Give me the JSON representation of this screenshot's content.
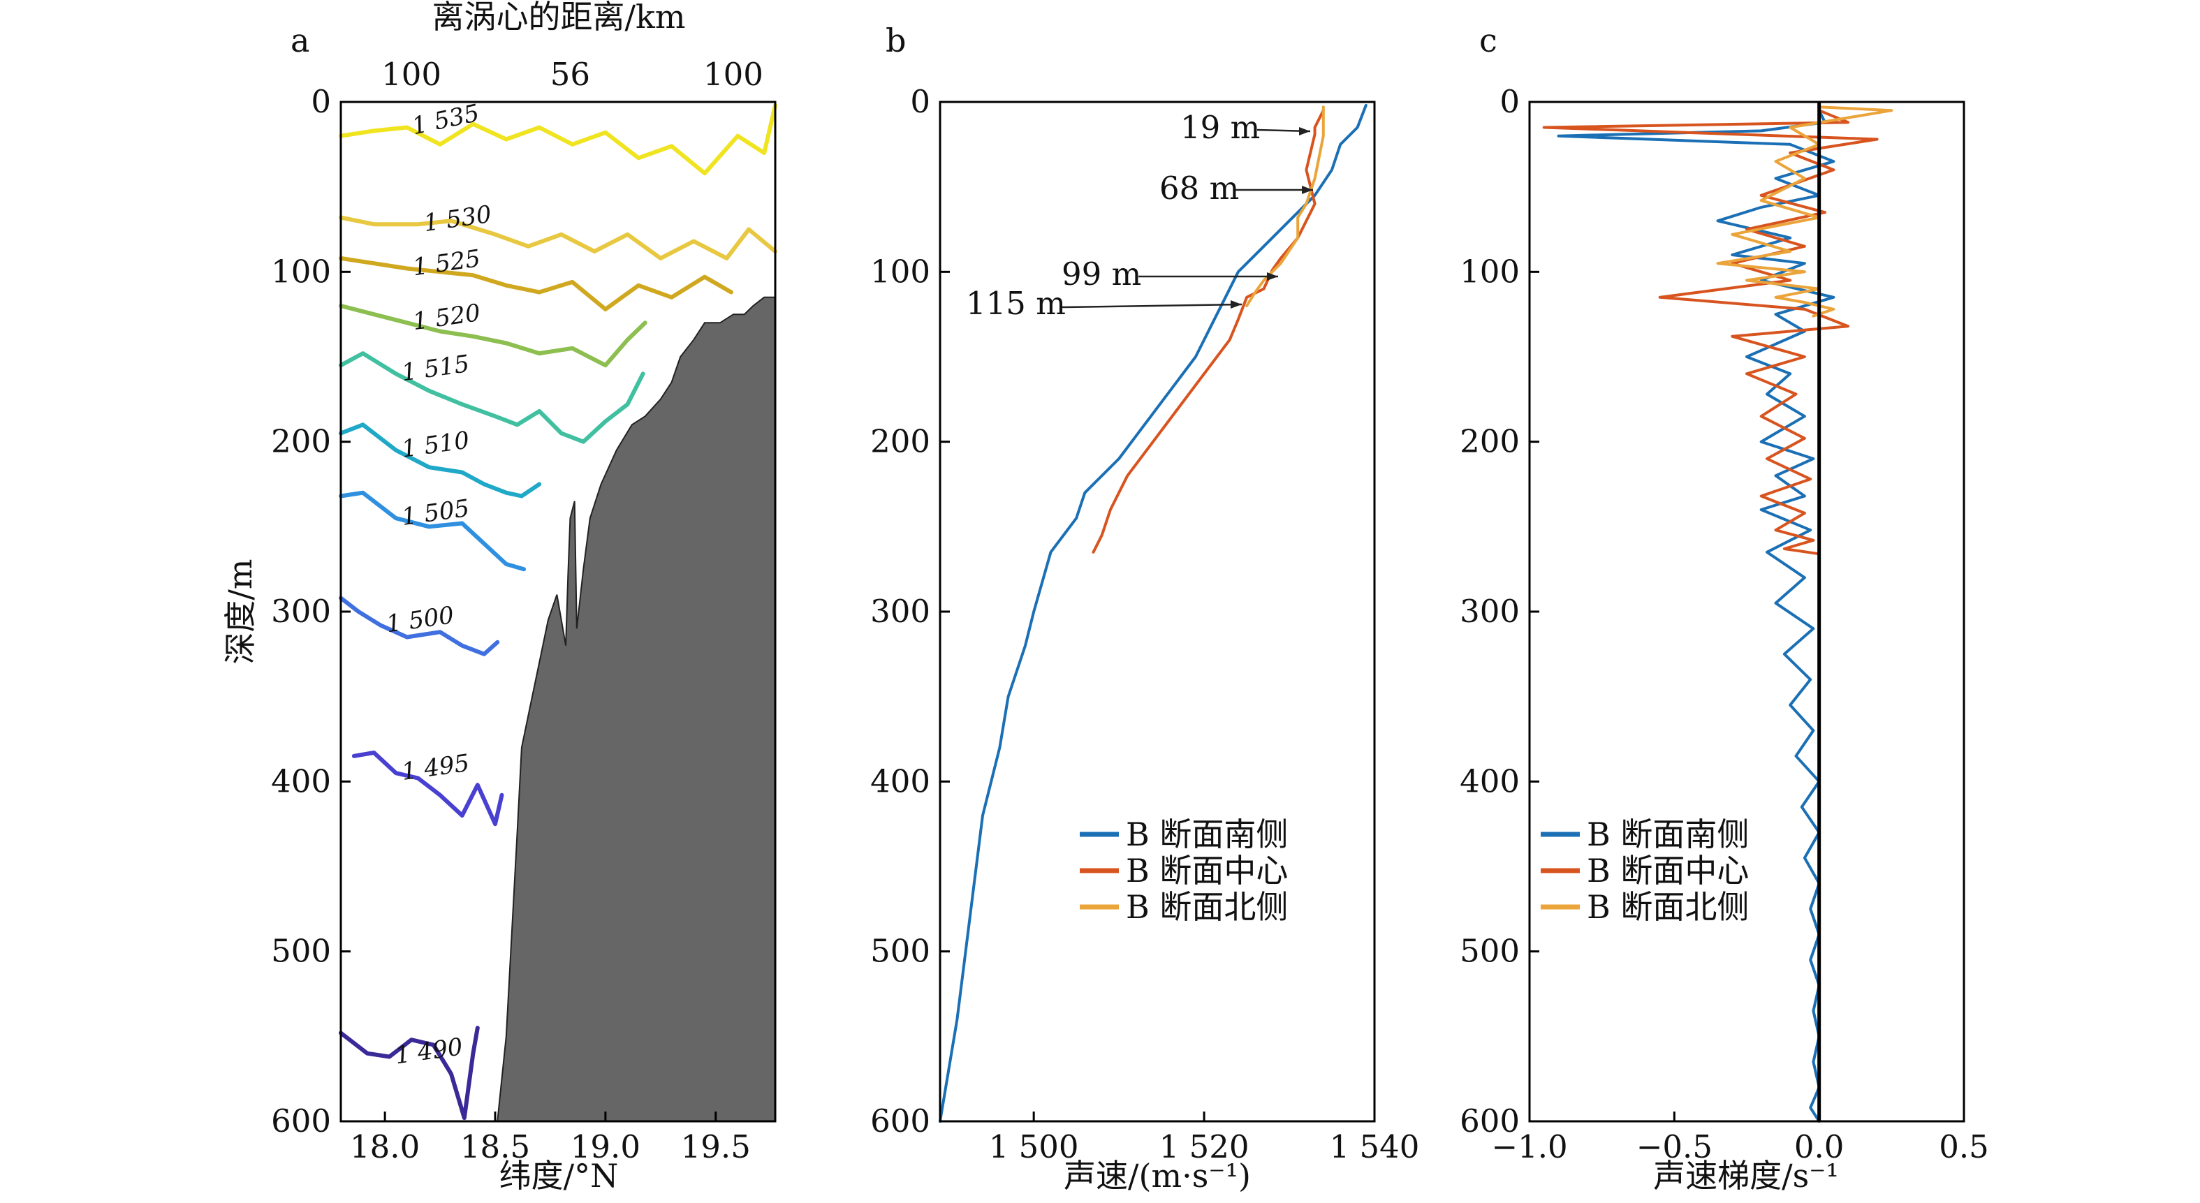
{
  "chart_data": [
    {
      "type": "line",
      "panel_letter": "a",
      "xlabel": "纬度/°N",
      "ylabel": "深度/m",
      "top_axis_label": "离涡心的距离/km",
      "top_ticks": [
        {
          "x": 18.12,
          "label": "100"
        },
        {
          "x": 18.84,
          "label": "56"
        },
        {
          "x": 19.58,
          "label": "100"
        }
      ],
      "xlim": [
        17.8,
        19.77
      ],
      "ylim": [
        600,
        0
      ],
      "xticks": [
        18.0,
        18.5,
        19.0,
        19.5
      ],
      "xtick_labels": [
        "18.0",
        "18.5",
        "19.0",
        "19.5"
      ],
      "yticks": [
        0,
        100,
        200,
        300,
        400,
        500,
        600
      ],
      "ytick_labels": [
        "0",
        "100",
        "200",
        "300",
        "400",
        "500",
        "600"
      ],
      "contour_levels": [
        {
          "level": 1535,
          "label": "1 535",
          "color": "#f0e420",
          "x": [
            17.8,
            17.95,
            18.1,
            18.25,
            18.4,
            18.55,
            18.7,
            18.85,
            19.0,
            19.15,
            19.3,
            19.45,
            19.6,
            19.72,
            19.77
          ],
          "y": [
            20,
            17,
            15,
            25,
            13,
            22,
            15,
            25,
            18,
            33,
            26,
            42,
            20,
            30,
            2
          ]
        },
        {
          "level": 1530,
          "label": "1 530",
          "color": "#e8c840",
          "x": [
            17.8,
            17.95,
            18.15,
            18.3,
            18.5,
            18.65,
            18.8,
            18.95,
            19.1,
            19.25,
            19.4,
            19.55,
            19.65,
            19.77
          ],
          "y": [
            68,
            72,
            72,
            70,
            78,
            85,
            78,
            88,
            78,
            92,
            82,
            92,
            75,
            88
          ]
        },
        {
          "level": 1525,
          "label": "1 525",
          "color": "#d0a820",
          "x": [
            17.8,
            17.95,
            18.1,
            18.25,
            18.4,
            18.55,
            18.7,
            18.85,
            19.0,
            19.15,
            19.3,
            19.45,
            19.57
          ],
          "y": [
            92,
            95,
            98,
            100,
            102,
            108,
            112,
            106,
            122,
            108,
            115,
            103,
            112
          ]
        },
        {
          "level": 1520,
          "label": "1 520",
          "color": "#8cbe50",
          "x": [
            17.8,
            17.95,
            18.1,
            18.25,
            18.4,
            18.55,
            18.7,
            18.85,
            19.0,
            19.1,
            19.18
          ],
          "y": [
            120,
            125,
            130,
            135,
            138,
            142,
            148,
            145,
            155,
            140,
            130
          ]
        },
        {
          "level": 1515,
          "label": "1 515",
          "color": "#40c0a0",
          "x": [
            17.8,
            17.9,
            18.05,
            18.2,
            18.35,
            18.5,
            18.6,
            18.7,
            18.8,
            18.9,
            19.0,
            19.1,
            19.17
          ],
          "y": [
            155,
            148,
            160,
            170,
            178,
            185,
            190,
            182,
            195,
            200,
            188,
            178,
            160
          ]
        },
        {
          "level": 1510,
          "label": "1 510",
          "color": "#20a8c8",
          "x": [
            17.8,
            17.9,
            18.05,
            18.2,
            18.35,
            18.45,
            18.55,
            18.62,
            18.7
          ],
          "y": [
            195,
            190,
            205,
            215,
            218,
            225,
            230,
            232,
            225
          ]
        },
        {
          "level": 1505,
          "label": "1 505",
          "color": "#3090e0",
          "x": [
            17.8,
            17.9,
            18.05,
            18.2,
            18.35,
            18.45,
            18.55,
            18.63
          ],
          "y": [
            232,
            230,
            245,
            250,
            248,
            260,
            272,
            275
          ]
        },
        {
          "level": 1500,
          "label": "1 500",
          "color": "#4070e0",
          "x": [
            17.8,
            17.88,
            17.98,
            18.1,
            18.25,
            18.35,
            18.45,
            18.51
          ],
          "y": [
            292,
            300,
            308,
            315,
            312,
            320,
            325,
            318
          ]
        },
        {
          "level": 1495,
          "label": "1 495",
          "color": "#4840d0",
          "x": [
            17.86,
            17.95,
            18.05,
            18.15,
            18.25,
            18.35,
            18.42,
            18.5,
            18.53
          ],
          "y": [
            385,
            383,
            395,
            398,
            408,
            420,
            402,
            425,
            408
          ]
        },
        {
          "level": 1490,
          "label": "1 490",
          "color": "#3a2a98",
          "x": [
            17.8,
            17.92,
            18.02,
            18.12,
            18.22,
            18.3,
            18.36,
            18.4,
            18.42
          ],
          "y": [
            548,
            560,
            562,
            552,
            555,
            572,
            598,
            560,
            545
          ]
        }
      ],
      "seafloor": {
        "color": "#666666",
        "x": [
          18.51,
          18.55,
          18.6,
          18.62,
          18.66,
          18.7,
          18.74,
          18.78,
          18.82,
          18.83,
          18.84,
          18.86,
          18.87,
          18.9,
          18.93,
          18.98,
          19.05,
          19.12,
          19.18,
          19.25,
          19.3,
          19.34,
          19.4,
          19.45,
          19.52,
          19.58,
          19.63,
          19.67,
          19.72,
          19.77
        ],
        "y": [
          600,
          550,
          430,
          380,
          355,
          330,
          305,
          290,
          320,
          280,
          245,
          235,
          310,
          275,
          245,
          225,
          205,
          190,
          185,
          175,
          165,
          150,
          140,
          130,
          130,
          125,
          125,
          120,
          115,
          115
        ]
      }
    },
    {
      "type": "line",
      "panel_letter": "b",
      "xlabel": "声速/(m·s⁻¹)",
      "ylim": [
        600,
        0
      ],
      "xlim": [
        1489,
        1540
      ],
      "xticks": [
        1500,
        1520,
        1540
      ],
      "xtick_labels": [
        "1 500",
        "1 520",
        "1 540"
      ],
      "yticks": [
        0,
        100,
        200,
        300,
        400,
        500,
        600
      ],
      "ytick_labels": [
        "0",
        "100",
        "200",
        "300",
        "400",
        "500",
        "600"
      ],
      "series": [
        {
          "name": "B 断面南侧",
          "color": "#1a6fb5",
          "x": [
            1539,
            1538,
            1536,
            1535,
            1533,
            1530,
            1527,
            1524,
            1523,
            1521,
            1519,
            1516,
            1513,
            1510,
            1506,
            1505,
            1502,
            1500,
            1499,
            1497,
            1496,
            1494,
            1493,
            1492,
            1491,
            1490,
            1489
          ],
          "y": [
            2,
            15,
            25,
            40,
            55,
            70,
            85,
            100,
            110,
            130,
            150,
            170,
            190,
            210,
            230,
            245,
            265,
            300,
            320,
            350,
            380,
            420,
            460,
            500,
            540,
            570,
            600
          ]
        },
        {
          "name": "B 断面中心",
          "color": "#d8541f",
          "x": [
            1534,
            1533,
            1533,
            1532,
            1533,
            1531,
            1529,
            1528,
            1527,
            1525,
            1524,
            1523,
            1520,
            1517,
            1514,
            1511,
            1509,
            1508,
            1507
          ],
          "y": [
            5,
            15,
            19,
            40,
            60,
            80,
            92,
            99,
            110,
            115,
            128,
            140,
            160,
            180,
            200,
            220,
            240,
            255,
            265
          ]
        },
        {
          "name": "B 断面北侧",
          "color": "#eba43a",
          "x": [
            1534,
            1534,
            1533,
            1532,
            1531,
            1531,
            1529,
            1527,
            1526,
            1525
          ],
          "y": [
            3,
            20,
            45,
            60,
            68,
            80,
            95,
            105,
            112,
            120
          ]
        }
      ],
      "annotations": [
        {
          "text": "19 m",
          "depth": 19
        },
        {
          "text": "68 m",
          "depth": 68
        },
        {
          "text": "99 m",
          "depth": 99
        },
        {
          "text": "115 m",
          "depth": 115
        }
      ],
      "legend": {
        "position": "lower-right",
        "entries": [
          "B 断面南侧",
          "B 断面中心",
          "B 断面北侧"
        ]
      }
    },
    {
      "type": "line",
      "panel_letter": "c",
      "xlabel": "声速梯度/s⁻¹",
      "ylim": [
        600,
        0
      ],
      "xlim": [
        -1.0,
        0.5
      ],
      "xticks": [
        -1.0,
        -0.5,
        0.0,
        0.5
      ],
      "xtick_labels": [
        "−1.0",
        "−0.5",
        "0.0",
        "0.5"
      ],
      "yticks": [
        0,
        100,
        200,
        300,
        400,
        500,
        600
      ],
      "ytick_labels": [
        "0",
        "100",
        "200",
        "300",
        "400",
        "500",
        "600"
      ],
      "zero_line": 0,
      "series": [
        {
          "name": "B 断面南侧",
          "color": "#1a6fb5",
          "x": [
            0.0,
            0.02,
            -0.2,
            -0.9,
            -0.1,
            0.05,
            -0.15,
            0.0,
            -0.2,
            -0.35,
            -0.1,
            -0.3,
            -0.05,
            -0.2,
            0.05,
            -0.15,
            -0.05,
            -0.25,
            -0.1,
            -0.18,
            -0.05,
            -0.2,
            -0.02,
            -0.15,
            -0.05,
            -0.2,
            -0.03,
            -0.18,
            -0.05,
            -0.15,
            -0.02,
            -0.12,
            -0.03,
            -0.1,
            -0.02,
            -0.08,
            0.0,
            -0.06,
            0.0,
            -0.05,
            0.0,
            -0.03,
            0.0,
            -0.03,
            0.0,
            -0.02,
            0.0,
            -0.02,
            0.0,
            -0.03,
            0.0
          ],
          "y": [
            5,
            12,
            17,
            20,
            25,
            35,
            45,
            55,
            62,
            70,
            80,
            90,
            95,
            105,
            115,
            125,
            135,
            150,
            160,
            172,
            185,
            200,
            210,
            220,
            232,
            240,
            252,
            265,
            280,
            295,
            310,
            325,
            340,
            355,
            370,
            385,
            400,
            415,
            430,
            445,
            460,
            475,
            490,
            505,
            520,
            535,
            550,
            565,
            580,
            592,
            600
          ]
        },
        {
          "name": "B 断面中心",
          "color": "#d8541f",
          "x": [
            0.0,
            0.1,
            -0.95,
            0.2,
            -0.1,
            0.05,
            -0.2,
            0.02,
            -0.25,
            -0.05,
            -0.3,
            -0.1,
            -0.55,
            -0.05,
            0.1,
            -0.3,
            -0.05,
            -0.25,
            -0.08,
            -0.2,
            -0.05,
            -0.18,
            -0.03,
            -0.2,
            -0.05,
            -0.15,
            -0.02,
            -0.12,
            0.0
          ],
          "y": [
            5,
            12,
            15,
            22,
            30,
            40,
            55,
            65,
            75,
            85,
            95,
            105,
            115,
            122,
            132,
            138,
            150,
            160,
            172,
            185,
            198,
            210,
            222,
            232,
            242,
            252,
            258,
            263,
            266
          ]
        },
        {
          "name": "B 断面北侧",
          "color": "#eba43a",
          "x": [
            0.0,
            0.25,
            -0.1,
            0.0,
            -0.15,
            -0.05,
            -0.2,
            0.0,
            -0.3,
            -0.1,
            -0.35,
            -0.05,
            -0.25,
            0.0,
            -0.15,
            -0.05,
            0.05,
            -0.02
          ],
          "y": [
            3,
            5,
            15,
            25,
            35,
            45,
            58,
            68,
            78,
            88,
            95,
            100,
            105,
            110,
            115,
            118,
            122,
            126
          ]
        }
      ],
      "legend": {
        "position": "lower-right",
        "entries": [
          "B 断面南侧",
          "B 断面中心",
          "B 断面北侧"
        ]
      }
    }
  ]
}
